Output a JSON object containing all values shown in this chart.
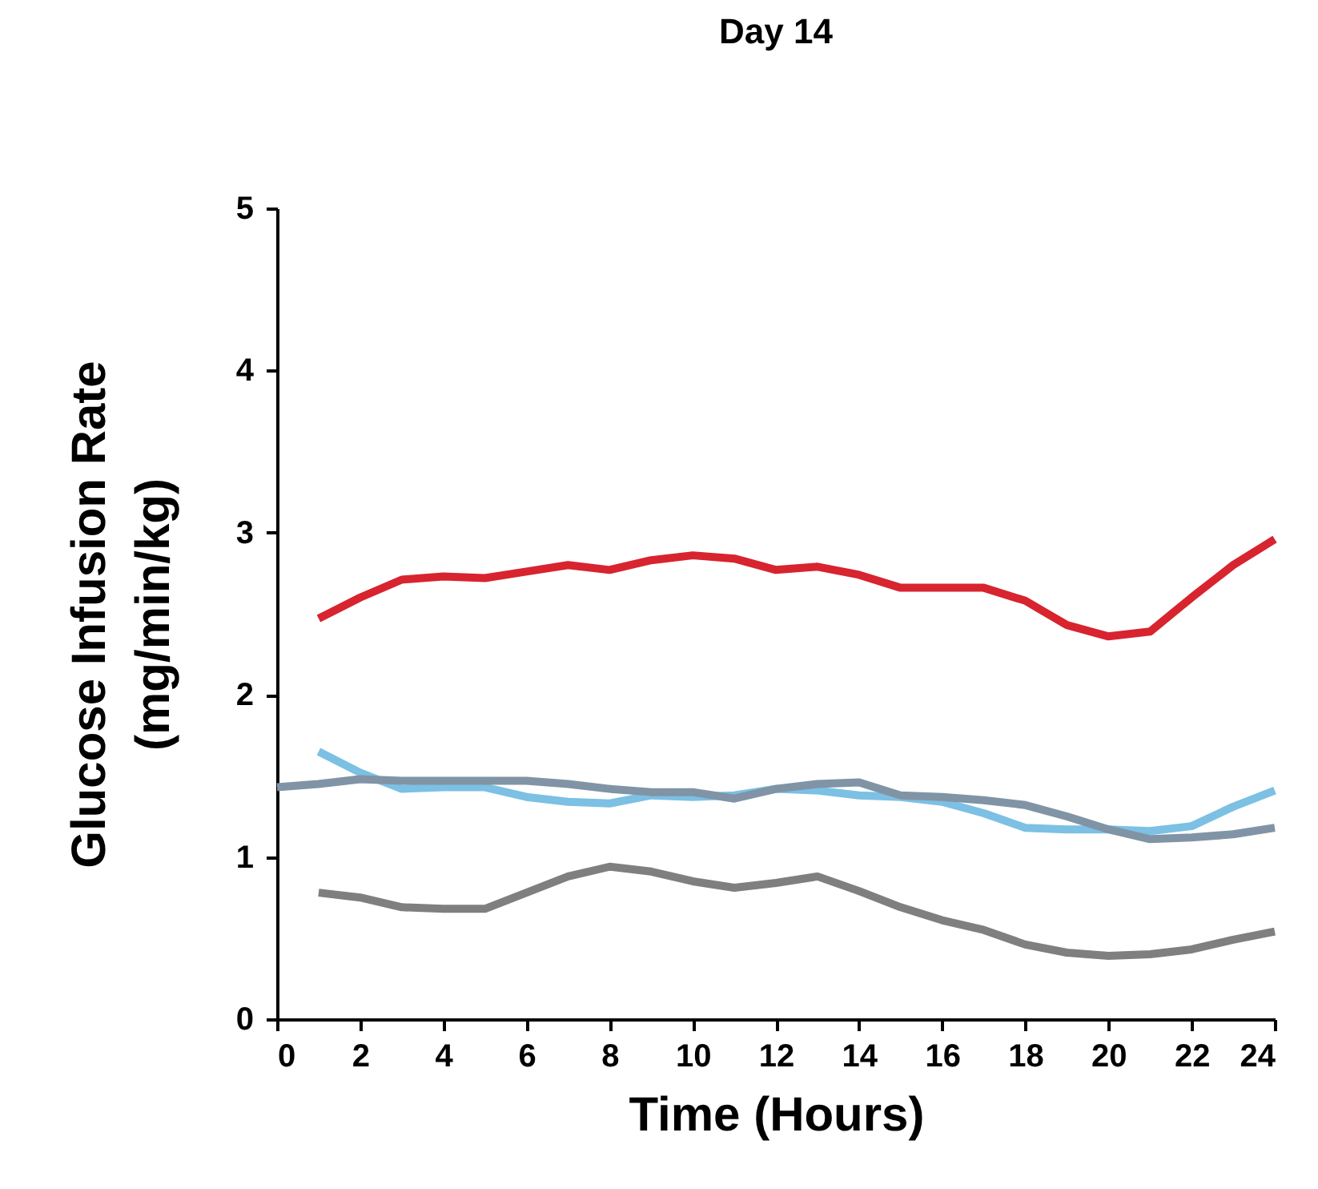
{
  "chart_data": {
    "type": "line",
    "title": "Day 14",
    "xlabel": "Time (Hours)",
    "ylabel": "Glucose Infusion Rate (mg/min/kg)",
    "xlim": [
      0,
      24
    ],
    "xticks": [
      0,
      2,
      4,
      6,
      8,
      10,
      12,
      14,
      16,
      18,
      20,
      22,
      24
    ],
    "ylim": [
      0,
      5
    ],
    "yticks": [
      0,
      1,
      2,
      3,
      4,
      5
    ],
    "grid": false,
    "marker": "none",
    "line_style": "solid",
    "x": [
      1,
      2,
      3,
      4,
      5,
      6,
      7,
      8,
      9,
      10,
      11,
      12,
      13,
      14,
      15,
      16,
      17,
      18,
      19,
      20,
      21,
      22,
      23,
      24
    ],
    "series": [
      {
        "color": "#d7242f",
        "values": [
          2.47,
          2.6,
          2.71,
          2.73,
          2.72,
          2.76,
          2.8,
          2.77,
          2.83,
          2.86,
          2.84,
          2.77,
          2.79,
          2.74,
          2.66,
          2.66,
          2.66,
          2.58,
          2.43,
          2.36,
          2.39,
          2.6,
          2.8,
          2.96
        ]
      },
      {
        "color": "#7cc0e4",
        "values": [
          1.65,
          1.52,
          1.42,
          1.43,
          1.43,
          1.37,
          1.34,
          1.33,
          1.38,
          1.37,
          1.38,
          1.42,
          1.41,
          1.38,
          1.37,
          1.34,
          1.27,
          1.18,
          1.17,
          1.17,
          1.16,
          1.19,
          1.31,
          1.41
        ]
      },
      {
        "color": "#8094a6",
        "x": [
          0,
          1,
          2,
          3,
          4,
          5,
          6,
          7,
          8,
          9,
          10,
          11,
          12,
          13,
          14,
          15,
          16,
          17,
          18,
          19,
          20,
          21,
          22,
          23,
          24
        ],
        "values": [
          1.43,
          1.45,
          1.48,
          1.47,
          1.47,
          1.47,
          1.47,
          1.45,
          1.42,
          1.4,
          1.4,
          1.36,
          1.42,
          1.45,
          1.46,
          1.38,
          1.37,
          1.35,
          1.32,
          1.25,
          1.17,
          1.11,
          1.12,
          1.14,
          1.18
        ]
      },
      {
        "color": "#7f7f7f",
        "values": [
          0.78,
          0.75,
          0.69,
          0.68,
          0.68,
          0.78,
          0.88,
          0.94,
          0.91,
          0.85,
          0.81,
          0.84,
          0.88,
          0.79,
          0.69,
          0.61,
          0.55,
          0.46,
          0.41,
          0.39,
          0.4,
          0.43,
          0.49,
          0.54
        ]
      }
    ]
  }
}
